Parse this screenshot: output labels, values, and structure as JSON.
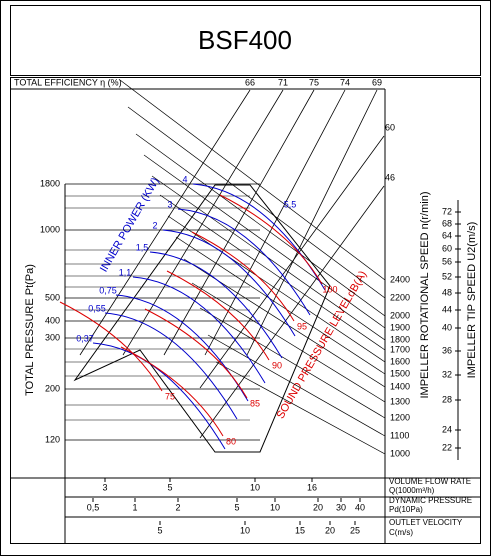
{
  "header": {
    "title": "BSF400"
  },
  "efficiency": {
    "label": "TOTAL EFFICIENCY η (%)",
    "values": [
      "66",
      "71",
      "75",
      "74",
      "69"
    ],
    "side": [
      "60",
      "46"
    ]
  },
  "pressure": {
    "label": "TOTAL PRESSURE Pt(Pa)",
    "ticks": [
      "1800",
      "1000",
      "500",
      "400",
      "300",
      "200",
      "120"
    ]
  },
  "power": {
    "label": "INNER POWER (KW)",
    "values": [
      "4",
      "3",
      "2",
      "1,5",
      "1,1",
      "0,75",
      "0,55",
      "0,37",
      "5,5"
    ]
  },
  "sound": {
    "label": "SOUND PRESSURE LEVELdB(A)",
    "values": [
      "100",
      "95",
      "90",
      "85",
      "80",
      "75"
    ]
  },
  "speed": {
    "label": "IMPELLER ROTATIONAL SPEED n(r/min)",
    "ticks": [
      "2400",
      "2200",
      "2000",
      "1900",
      "1800",
      "1700",
      "1600",
      "1500",
      "1400",
      "1300",
      "1200",
      "1100",
      "1000"
    ]
  },
  "tip": {
    "label": "IMPELLER TIP SPEED U2(m/s)",
    "ticks": [
      "72",
      "68",
      "64",
      "60",
      "56",
      "52",
      "48",
      "44",
      "40",
      "36",
      "32",
      "28",
      "24",
      "22"
    ]
  },
  "flow": {
    "label": "VOLUME FLOW RATE",
    "unit": "Q(1000m³/h)",
    "ticks": [
      "3",
      "5",
      "10",
      "16"
    ]
  },
  "dynamic": {
    "label": "DYNAMIC PRESSURE",
    "unit": "Pd(10Pa)",
    "ticks": [
      "0,5",
      "1",
      "2",
      "5",
      "10",
      "20",
      "30",
      "40"
    ]
  },
  "velocity": {
    "label": "OUTLET VELOCITY",
    "unit": "C(m/s)",
    "ticks": [
      "5",
      "10",
      "15",
      "20",
      "25"
    ]
  }
}
